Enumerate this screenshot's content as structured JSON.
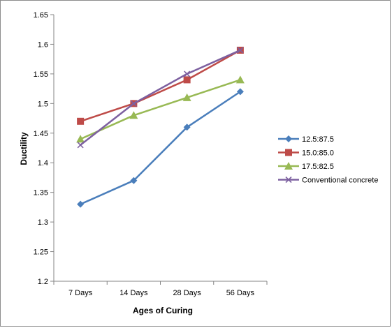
{
  "chart_data": {
    "type": "line",
    "title": "",
    "xlabel": "Ages of Curing",
    "ylabel": "Ductility",
    "categories": [
      "7 Days",
      "14 Days",
      "28 Days",
      "56 Days"
    ],
    "ylim": [
      1.2,
      1.65
    ],
    "yticks": [
      "1.2",
      "1.25",
      "1.3",
      "1.35",
      "1.4",
      "1.45",
      "1.5",
      "1.55",
      "1.6",
      "1.65"
    ],
    "grid": false,
    "legend_position": "right",
    "series": [
      {
        "name": "12.5:87.5",
        "values": [
          1.33,
          1.37,
          1.46,
          1.52
        ],
        "color": "#4a7ebb",
        "marker": "diamond"
      },
      {
        "name": "15.0:85.0",
        "values": [
          1.47,
          1.5,
          1.54,
          1.59
        ],
        "color": "#be4b48",
        "marker": "square"
      },
      {
        "name": "17.5:82.5",
        "values": [
          1.44,
          1.48,
          1.51,
          1.54
        ],
        "color": "#98b954",
        "marker": "triangle"
      },
      {
        "name": "Conventional concrete",
        "values": [
          1.43,
          1.5,
          1.55,
          1.59
        ],
        "color": "#7d60a0",
        "marker": "x"
      }
    ]
  }
}
